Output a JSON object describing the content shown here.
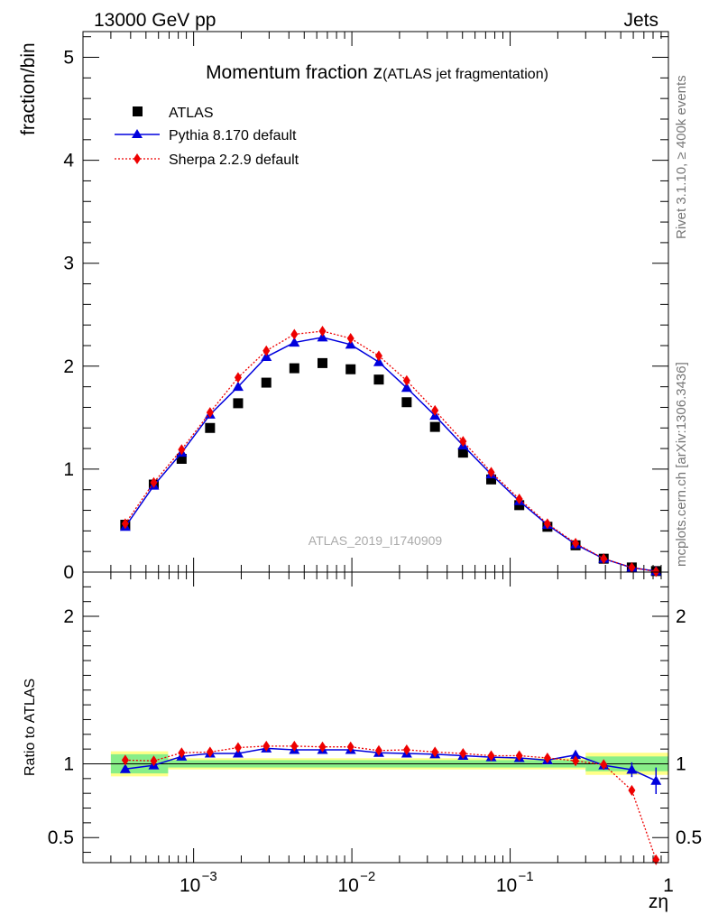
{
  "header": {
    "left": "13000 GeV pp",
    "right": "Jets"
  },
  "side": {
    "top": "Rivet 3.1.10, ≥ 400k events",
    "bottom": "mcplots.cern.ch [arXiv:1306.3436]"
  },
  "chart_data": {
    "type": "scatter",
    "title": "Momentum fraction z",
    "title_note": "(ATLAS jet fragmentation)",
    "analysis_label": "ATLAS_2019_I1740909",
    "xlabel": "zη",
    "x_scale": "log",
    "xlim": [
      0.0002,
      1
    ],
    "x_tick_labels": [
      "10",
      "−3",
      "10",
      "−2",
      "10",
      "−1",
      "1"
    ],
    "main": {
      "ylabel": "fraction/bin",
      "ylim": [
        0,
        5.25
      ],
      "y_tick_labels": [
        "0",
        "1",
        "2",
        "3",
        "4",
        "5"
      ]
    },
    "ratio": {
      "ylabel": "Ratio to ATLAS",
      "ylim": [
        0.33,
        2.3
      ],
      "y_tick_labels": [
        "0.5",
        "1",
        "2"
      ]
    },
    "x": [
      0.00037,
      0.00056,
      0.00084,
      0.00127,
      0.00191,
      0.00288,
      0.00433,
      0.00652,
      0.00982,
      0.0148,
      0.0222,
      0.0335,
      0.0504,
      0.0759,
      0.1142,
      0.172,
      0.259,
      0.39,
      0.587,
      0.835
    ],
    "series": [
      {
        "name": "ATLAS",
        "color": "#000000",
        "marker": "square",
        "values": [
          0.46,
          0.85,
          1.1,
          1.4,
          1.64,
          1.84,
          1.98,
          2.03,
          1.97,
          1.87,
          1.65,
          1.41,
          1.16,
          0.9,
          0.65,
          0.44,
          0.26,
          0.13,
          0.045,
          0.01
        ],
        "ratio": [
          1,
          1,
          1,
          1,
          1,
          1,
          1,
          1,
          1,
          1,
          1,
          1,
          1,
          1,
          1,
          1,
          1,
          1,
          1,
          1
        ]
      },
      {
        "name": "Pythia 8.170 default",
        "color": "#0000dd",
        "marker": "triangle",
        "values": [
          0.44,
          0.84,
          1.16,
          1.53,
          1.8,
          2.09,
          2.23,
          2.28,
          2.21,
          2.04,
          1.79,
          1.52,
          1.23,
          0.95,
          0.69,
          0.46,
          0.27,
          0.13,
          0.043,
          0.009
        ],
        "ratio": [
          0.965,
          0.99,
          1.05,
          1.07,
          1.07,
          1.105,
          1.095,
          1.095,
          1.095,
          1.075,
          1.07,
          1.065,
          1.055,
          1.045,
          1.04,
          1.025,
          1.06,
          0.99,
          0.96,
          0.885
        ],
        "ratio_err": [
          0,
          0,
          0,
          0,
          0,
          0,
          0,
          0,
          0,
          0,
          0,
          0,
          0,
          0,
          0,
          0,
          0,
          0.03,
          0.05,
          0.09
        ]
      },
      {
        "name": "Sherpa 2.2.9 default",
        "color": "#ee0000",
        "marker": "diamond",
        "line": "dotted",
        "values": [
          0.47,
          0.87,
          1.19,
          1.55,
          1.89,
          2.15,
          2.31,
          2.34,
          2.27,
          2.1,
          1.86,
          1.57,
          1.27,
          0.97,
          0.71,
          0.47,
          0.28,
          0.13,
          0.045,
          0.0045
        ],
        "ratio": [
          1.025,
          1.02,
          1.075,
          1.08,
          1.11,
          1.12,
          1.12,
          1.115,
          1.115,
          1.09,
          1.095,
          1.08,
          1.07,
          1.055,
          1.055,
          1.04,
          1.02,
          0.995,
          0.82,
          0.35
        ]
      }
    ],
    "bands": {
      "yellow": [
        [
          0.0003,
          0.00069,
          0.085
        ],
        [
          0.00069,
          0.3,
          0.038
        ],
        [
          0.3,
          1,
          0.075
        ]
      ],
      "green": [
        [
          0.0003,
          0.00069,
          0.065
        ],
        [
          0.00069,
          0.3,
          0.025
        ],
        [
          0.3,
          1,
          0.05
        ]
      ]
    }
  }
}
